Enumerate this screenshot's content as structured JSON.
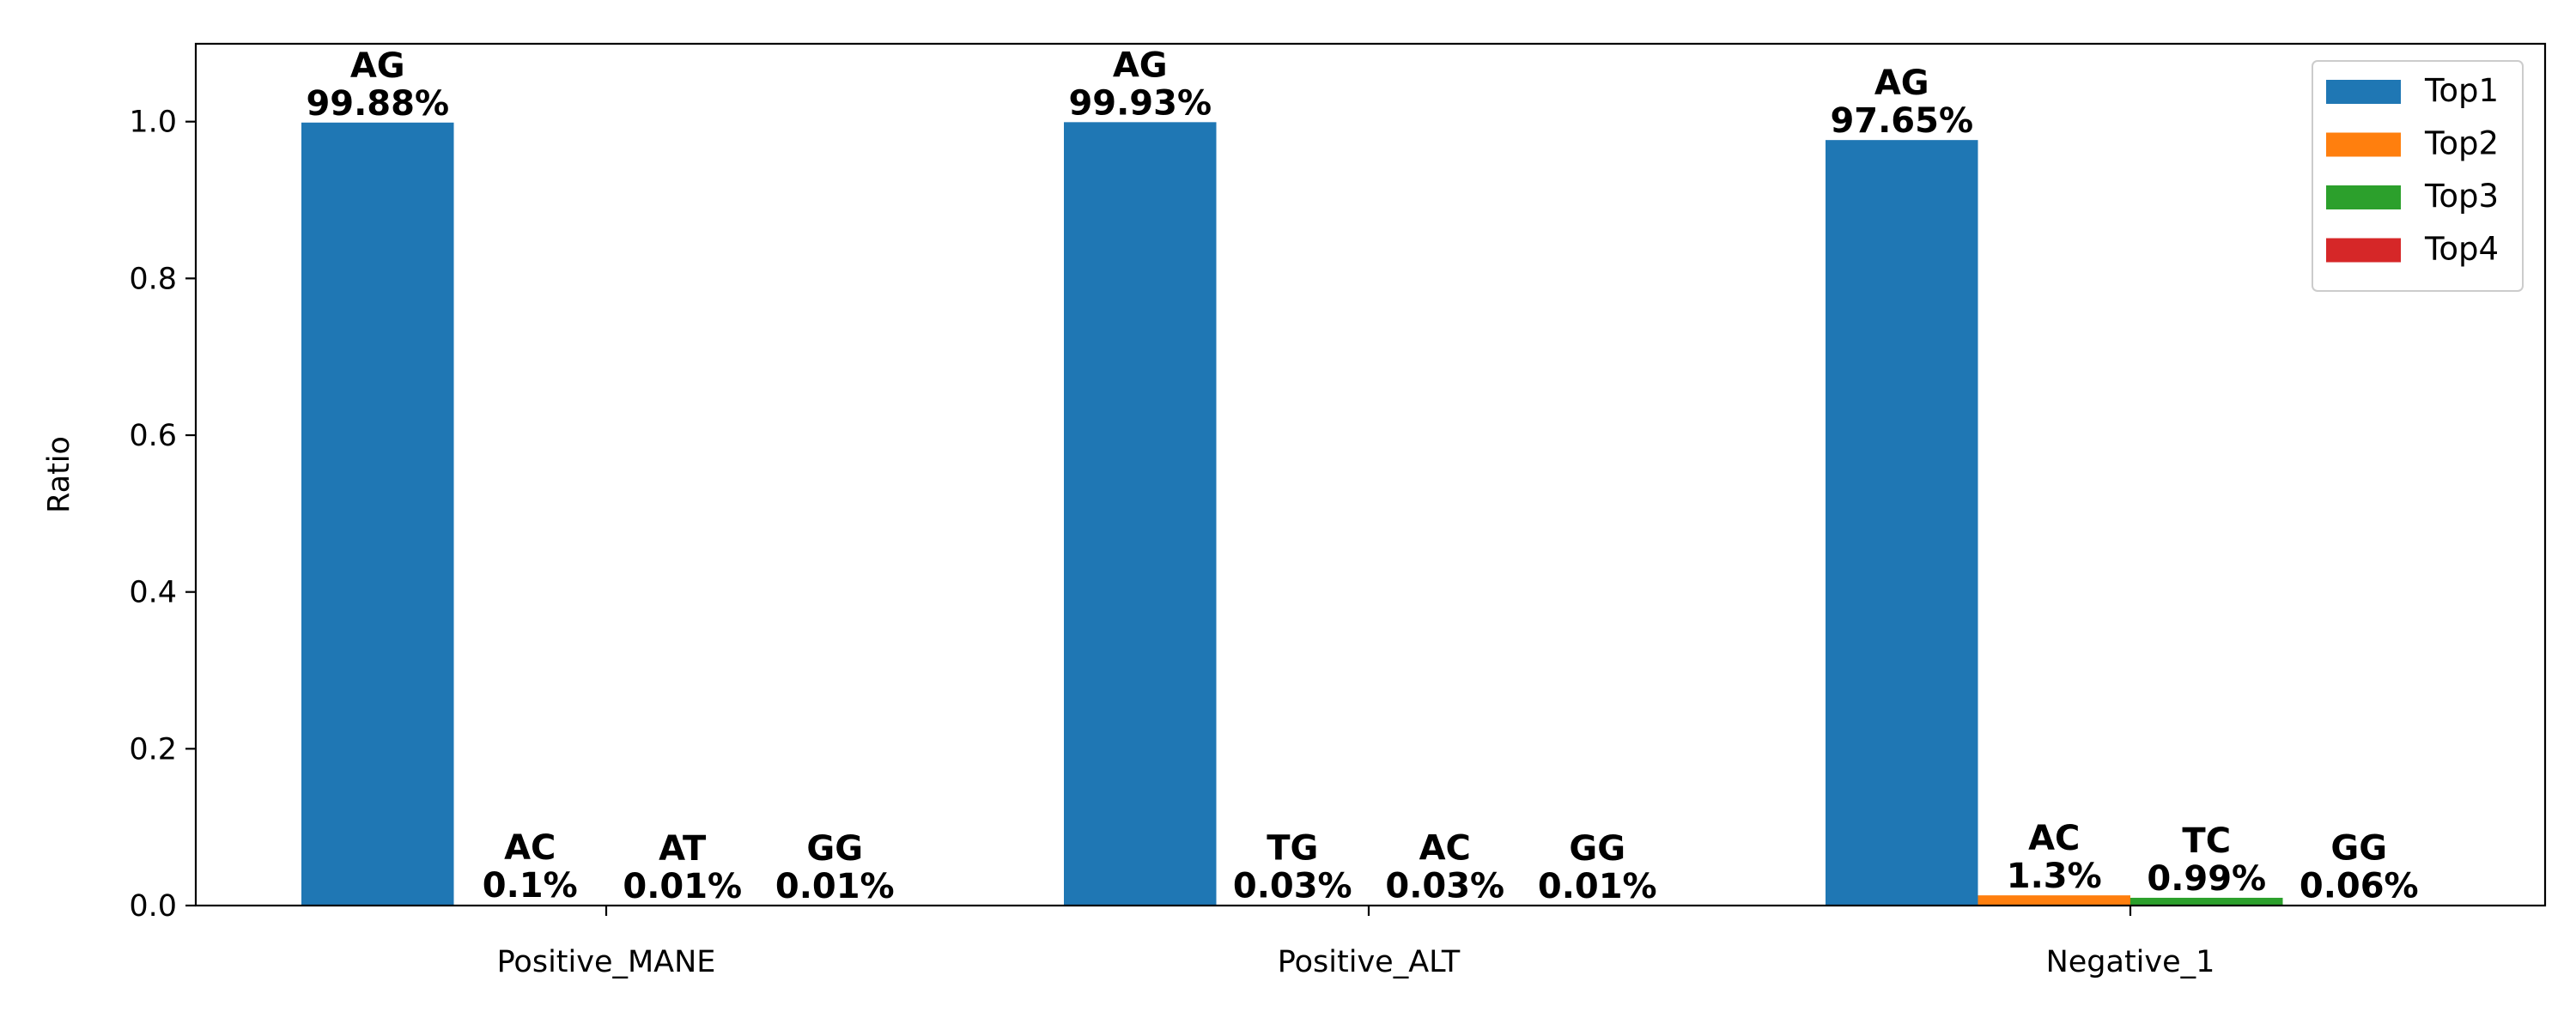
{
  "chart_data": {
    "type": "bar",
    "title": "",
    "xlabel": "",
    "ylabel": "Ratio",
    "ylim": [
      0,
      1.1
    ],
    "yticks": [
      0.0,
      0.2,
      0.4,
      0.6,
      0.8,
      1.0
    ],
    "ytick_labels": [
      "0.0",
      "0.2",
      "0.4",
      "0.6",
      "0.8",
      "1.0"
    ],
    "categories": [
      "Positive_MANE",
      "Positive_ALT",
      "Negative_1"
    ],
    "grid": false,
    "legend_position": "top-right",
    "series": [
      {
        "name": "Top1",
        "color": "#1f77b4",
        "values": [
          0.9988,
          0.9993,
          0.9765
        ],
        "motifs": [
          "AG",
          "AG",
          "AG"
        ],
        "labels": [
          "99.88%",
          "99.93%",
          "97.65%"
        ]
      },
      {
        "name": "Top2",
        "color": "#ff7f0e",
        "values": [
          0.001,
          0.0003,
          0.013
        ],
        "motifs": [
          "AC",
          "TG",
          "AC"
        ],
        "labels": [
          "0.1%",
          "0.03%",
          "1.3%"
        ]
      },
      {
        "name": "Top3",
        "color": "#2ca02c",
        "values": [
          0.0001,
          0.0003,
          0.0099
        ],
        "motifs": [
          "AT",
          "AC",
          "TC"
        ],
        "labels": [
          "0.01%",
          "0.03%",
          "0.99%"
        ]
      },
      {
        "name": "Top4",
        "color": "#d62728",
        "values": [
          0.0001,
          0.0001,
          0.0006
        ],
        "motifs": [
          "GG",
          "GG",
          "GG"
        ],
        "labels": [
          "0.01%",
          "0.01%",
          "0.06%"
        ]
      }
    ]
  }
}
